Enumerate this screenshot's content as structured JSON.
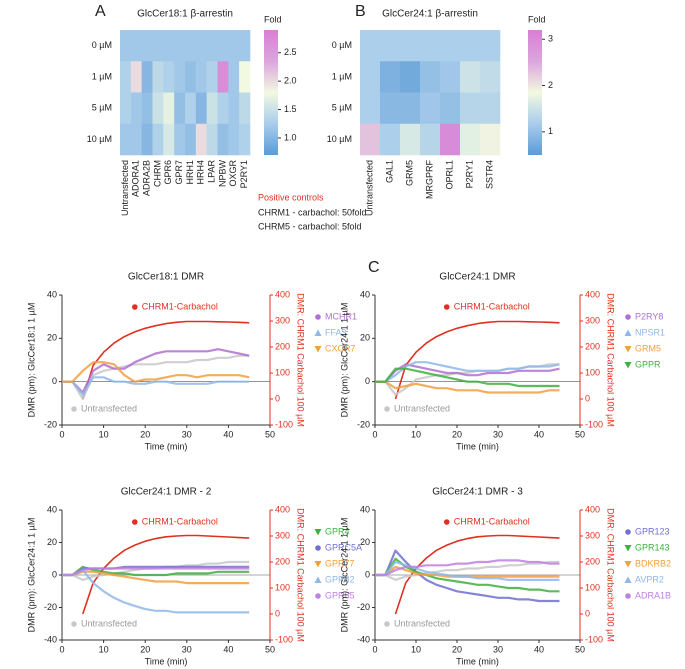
{
  "panel_labels": [
    "A",
    "B",
    "C"
  ],
  "positive_controls": {
    "title": "Positive controls",
    "items": [
      "CHRM1 - carbachol: 50fold",
      "CHRM5 - carbachol: 5fold"
    ]
  },
  "chart_data": [
    {
      "type": "heatmap",
      "title": "GlcCer18:1 β-arrestin",
      "colorbar_label": "Fold",
      "x": [
        "Untransfected",
        "ADORA1",
        "ADRA2B",
        "CHRM",
        "GPR6",
        "GPR7",
        "HRH1",
        "HRH4",
        "LPAR",
        "NPBW",
        "OXGR",
        "P2RY1"
      ],
      "y": [
        "0 µM",
        "1 µM",
        "5 µM",
        "10 µM"
      ],
      "values": [
        [
          1.2,
          1.2,
          1.2,
          1.2,
          1.2,
          1.2,
          1.2,
          1.2,
          1.2,
          1.2,
          1.2,
          1.2
        ],
        [
          1.3,
          2.0,
          1.0,
          1.4,
          1.3,
          1.2,
          1.1,
          1.2,
          1.3,
          2.7,
          1.2,
          1.8
        ],
        [
          1.3,
          1.2,
          1.1,
          1.5,
          1.7,
          1.1,
          1.3,
          1.0,
          1.5,
          1.3,
          1.2,
          1.4
        ],
        [
          1.2,
          1.2,
          1.0,
          1.3,
          1.6,
          1.2,
          1.1,
          2.0,
          1.4,
          1.1,
          1.2,
          1.3
        ]
      ],
      "clim": [
        0.7,
        2.9
      ],
      "cticks": [
        {
          "value": 1,
          "label": "1.0"
        },
        1.5,
        {
          "value": 2,
          "label": "2.0"
        },
        2.5
      ],
      "colors": [
        "#5b9bd5",
        "#a9cdeb",
        "#f2f9e1",
        "#dba6dd",
        "#d77fd4"
      ]
    },
    {
      "type": "heatmap",
      "title": "GlcCer24:1 β-arrestin",
      "colorbar_label": "Fold",
      "x": [
        "Untransfected",
        "GAL1",
        "GRM5",
        "MRGPRF",
        "OPRL1",
        "P2RY1",
        "SSTR4"
      ],
      "y": [
        "0 µM",
        "1 µM",
        "5 µM",
        "10 µM"
      ],
      "values": [
        [
          1.2,
          1.2,
          1.2,
          1.2,
          1.2,
          1.2,
          1.2
        ],
        [
          1.2,
          0.8,
          0.7,
          1.0,
          1.1,
          1.5,
          1.4
        ],
        [
          1.2,
          0.9,
          0.9,
          1.1,
          1.0,
          1.3,
          1.3
        ],
        [
          2.3,
          1.2,
          1.6,
          1.3,
          3.0,
          1.7,
          1.9
        ]
      ],
      "clim": [
        0.5,
        3.2
      ],
      "cticks": [
        1,
        2,
        3
      ],
      "colors": [
        "#5b9bd5",
        "#a9cdeb",
        "#f2f9e1",
        "#dba6dd",
        "#d77fd4"
      ]
    },
    {
      "type": "line",
      "title": "GlcCer18:1 DMR",
      "xlabel": "Time (min)",
      "ylabel": "DMR (pm): GlcCer18:1 1 µM",
      "y2label": "DMR: CHRM1 Carbachol 100 µM",
      "x": [
        0,
        2.5,
        5,
        7.5,
        10,
        12.5,
        15,
        17.5,
        20,
        22.5,
        25,
        27.5,
        30,
        32.5,
        35,
        37.5,
        40,
        42.5,
        45
      ],
      "xlim": [
        0,
        50
      ],
      "xticks": [
        0,
        10,
        20,
        30,
        40,
        50
      ],
      "ylim": [
        -20,
        40
      ],
      "yticks": [
        -20,
        0,
        20,
        40
      ],
      "y2lim": [
        -100,
        400
      ],
      "y2ticks": [
        -100,
        0,
        100,
        200,
        300,
        400
      ],
      "series": [
        {
          "name": "CHRM1-Carbachol",
          "color": "#e03020",
          "axis": "y2",
          "legend": "top",
          "marker": "circle",
          "values": [
            null,
            null,
            0,
            130,
            180,
            215,
            240,
            258,
            272,
            282,
            290,
            295,
            298,
            298,
            298,
            297,
            296,
            295,
            293
          ]
        },
        {
          "name": "Untransfected",
          "color": "#c8c8c8",
          "legend": "bottom-left",
          "marker": "circle",
          "values": [
            0,
            0,
            -8,
            3,
            5,
            6,
            7,
            8,
            8,
            8,
            9,
            9,
            9,
            10,
            10,
            11,
            11,
            12,
            12
          ]
        },
        {
          "name": "MCHR1",
          "color": "#b070d0",
          "legend": "right",
          "marker": "circle",
          "values": [
            0,
            0,
            -5,
            5,
            8,
            6,
            6,
            9,
            11,
            13,
            14,
            14,
            14,
            14,
            14,
            15,
            14,
            13,
            12
          ]
        },
        {
          "name": "FFA3",
          "color": "#8fb8e8",
          "legend": "right",
          "marker": "triangle-up",
          "values": [
            0,
            0,
            -6,
            2,
            2,
            0,
            0,
            -1,
            -1,
            0,
            0,
            -1,
            -1,
            -1,
            -1,
            0,
            0,
            0,
            0
          ]
        },
        {
          "name": "CXCR7",
          "color": "#f0a040",
          "legend": "right",
          "marker": "triangle-down",
          "values": [
            0,
            0,
            5,
            9,
            9,
            8,
            3,
            0,
            1,
            1,
            2,
            3,
            3,
            2,
            3,
            3,
            3,
            3,
            2
          ]
        }
      ]
    },
    {
      "type": "line",
      "title": "GlcCer24:1 DMR",
      "xlabel": "Time (min)",
      "ylabel": "DMR (pm): GlcCer24:1 1 µM",
      "y2label": "DMR: CHRM1 Carbachol 100 µM",
      "x": [
        0,
        2.5,
        5,
        7.5,
        10,
        12.5,
        15,
        17.5,
        20,
        22.5,
        25,
        27.5,
        30,
        32.5,
        35,
        37.5,
        40,
        42.5,
        45
      ],
      "xlim": [
        0,
        50
      ],
      "xticks": [
        0,
        10,
        20,
        30,
        40,
        50
      ],
      "ylim": [
        -20,
        40
      ],
      "yticks": [
        -20,
        0,
        20,
        40
      ],
      "y2lim": [
        -100,
        400
      ],
      "y2ticks": [
        -100,
        0,
        100,
        200,
        300,
        400
      ],
      "series": [
        {
          "name": "CHRM1-Carbachol",
          "color": "#e03020",
          "axis": "y2",
          "legend": "top",
          "marker": "circle",
          "values": [
            null,
            null,
            0,
            130,
            180,
            215,
            240,
            258,
            272,
            282,
            290,
            295,
            298,
            298,
            298,
            297,
            296,
            295,
            293
          ]
        },
        {
          "name": "Untransfected",
          "color": "#c8c8c8",
          "legend": "bottom-left",
          "marker": "circle",
          "values": [
            0,
            0,
            -6,
            -3,
            1,
            2,
            3,
            3,
            4,
            4,
            5,
            5,
            5,
            6,
            6,
            7,
            7,
            8,
            8
          ]
        },
        {
          "name": "P2RY8",
          "color": "#b070d0",
          "legend": "right",
          "marker": "circle",
          "values": [
            0,
            0,
            5,
            8,
            7,
            6,
            5,
            4,
            4,
            3,
            3,
            4,
            4,
            4,
            5,
            5,
            5,
            5,
            6
          ]
        },
        {
          "name": "NPSR1",
          "color": "#8fb8e8",
          "legend": "right",
          "marker": "triangle-up",
          "values": [
            0,
            0,
            3,
            7,
            9,
            9,
            8,
            7,
            6,
            5,
            5,
            5,
            5,
            6,
            6,
            7,
            7,
            7,
            8
          ]
        },
        {
          "name": "GRM5",
          "color": "#f0a040",
          "legend": "right",
          "marker": "triangle-down",
          "values": [
            0,
            0,
            -3,
            -2,
            -1,
            -2,
            -3,
            -3,
            -4,
            -4,
            -4,
            -5,
            -5,
            -5,
            -5,
            -5,
            -5,
            -4,
            -4
          ]
        },
        {
          "name": "GPPR",
          "color": "#40b040",
          "legend": "right",
          "marker": "triangle-down",
          "values": [
            0,
            0,
            6,
            6,
            5,
            4,
            3,
            2,
            1,
            0,
            0,
            -1,
            -1,
            -1,
            -2,
            -2,
            -2,
            -2,
            -2
          ]
        }
      ]
    },
    {
      "type": "line",
      "title": "GlcCer24:1 DMR - 2",
      "xlabel": "Time (min)",
      "ylabel": "DMR (pm): GlcCer24:1 1 µM",
      "y2label": "DMR: CHRM1 Carbachol 100 µM",
      "x": [
        0,
        2.5,
        5,
        7.5,
        10,
        12.5,
        15,
        17.5,
        20,
        22.5,
        25,
        27.5,
        30,
        32.5,
        35,
        37.5,
        40,
        42.5,
        45
      ],
      "xlim": [
        0,
        50
      ],
      "xticks": [
        0,
        10,
        20,
        30,
        40,
        50
      ],
      "ylim": [
        -40,
        40
      ],
      "yticks": [
        -40,
        -20,
        0,
        20,
        40
      ],
      "y2lim": [
        -100,
        400
      ],
      "y2ticks": [
        -100,
        0,
        100,
        200,
        300,
        400
      ],
      "series": [
        {
          "name": "CHRM1-Carbachol",
          "color": "#e03020",
          "axis": "y2",
          "legend": "top",
          "marker": "circle",
          "values": [
            null,
            null,
            0,
            120,
            175,
            215,
            245,
            265,
            280,
            290,
            297,
            300,
            302,
            302,
            300,
            298,
            296,
            294,
            292
          ]
        },
        {
          "name": "Untransfected",
          "color": "#c8c8c8",
          "legend": "bottom-left",
          "marker": "circle",
          "values": [
            0,
            0,
            -3,
            -1,
            0,
            1,
            2,
            3,
            4,
            4,
            5,
            5,
            6,
            6,
            7,
            7,
            8,
            8,
            8
          ]
        },
        {
          "name": "GPR4",
          "color": "#40b040",
          "legend": "right",
          "marker": "triangle-down",
          "values": [
            0,
            0,
            5,
            3,
            2,
            1,
            1,
            0,
            0,
            0,
            0,
            1,
            1,
            1,
            1,
            2,
            2,
            2,
            2
          ]
        },
        {
          "name": "GPRC5A",
          "color": "#7070d0",
          "legend": "right",
          "marker": "circle",
          "values": [
            0,
            0,
            4,
            4,
            4,
            4,
            5,
            5,
            5,
            5,
            5,
            5,
            5,
            5,
            5,
            5,
            5,
            5,
            5
          ]
        },
        {
          "name": "GPR77",
          "color": "#f0a040",
          "legend": "right",
          "marker": "triangle-down",
          "values": [
            0,
            0,
            2,
            2,
            1,
            0,
            -1,
            -2,
            -3,
            -4,
            -4,
            -4,
            -5,
            -5,
            -5,
            -5,
            -5,
            -5,
            -5
          ]
        },
        {
          "name": "GPR82",
          "color": "#8fb8e8",
          "legend": "right",
          "marker": "triangle-up",
          "values": [
            0,
            0,
            3,
            -5,
            -10,
            -14,
            -17,
            -19,
            -21,
            -22,
            -22,
            -23,
            -23,
            -23,
            -23,
            -23,
            -23,
            -23,
            -23
          ]
        },
        {
          "name": "GPR85",
          "color": "#c080e0",
          "legend": "right",
          "marker": "circle",
          "values": [
            0,
            0,
            3,
            4,
            4,
            4,
            4,
            4,
            4,
            4,
            4,
            4,
            4,
            4,
            4,
            4,
            4,
            4,
            4
          ]
        }
      ]
    },
    {
      "type": "line",
      "title": "GlcCer24:1 DMR - 3",
      "xlabel": "Time (min)",
      "ylabel": "DMR (pm): GlcCer24:1 1 µM",
      "y2label": "DMR: CHRM1 Carbachol 100 µM",
      "x": [
        0,
        2.5,
        5,
        7.5,
        10,
        12.5,
        15,
        17.5,
        20,
        22.5,
        25,
        27.5,
        30,
        32.5,
        35,
        37.5,
        40,
        42.5,
        45
      ],
      "xlim": [
        0,
        50
      ],
      "xticks": [
        0,
        10,
        20,
        30,
        40,
        50
      ],
      "ylim": [
        -40,
        40
      ],
      "yticks": [
        -40,
        -20,
        0,
        20,
        40
      ],
      "y2lim": [
        -100,
        400
      ],
      "y2ticks": [
        -100,
        0,
        100,
        200,
        300,
        400
      ],
      "series": [
        {
          "name": "CHRM1-Carbachol",
          "color": "#e03020",
          "axis": "y2",
          "legend": "top",
          "marker": "circle",
          "values": [
            null,
            null,
            0,
            120,
            175,
            215,
            245,
            265,
            280,
            290,
            297,
            300,
            302,
            302,
            300,
            298,
            296,
            294,
            292
          ]
        },
        {
          "name": "Untransfected",
          "color": "#c8c8c8",
          "legend": "bottom-left",
          "marker": "circle",
          "values": [
            0,
            0,
            -3,
            -1,
            0,
            1,
            2,
            3,
            3,
            4,
            4,
            5,
            5,
            6,
            6,
            7,
            7,
            8,
            8
          ]
        },
        {
          "name": "GPR123",
          "color": "#7070d0",
          "legend": "right",
          "marker": "circle",
          "values": [
            0,
            0,
            15,
            8,
            2,
            -3,
            -6,
            -8,
            -10,
            -11,
            -12,
            -13,
            -14,
            -14,
            -15,
            -15,
            -16,
            -16,
            -16
          ]
        },
        {
          "name": "GPR143",
          "color": "#40b040",
          "legend": "right",
          "marker": "triangle-down",
          "values": [
            0,
            0,
            10,
            5,
            2,
            0,
            -2,
            -3,
            -4,
            -5,
            -6,
            -6,
            -7,
            -8,
            -8,
            -9,
            -9,
            -10,
            -10
          ]
        },
        {
          "name": "BDKRB2",
          "color": "#f0a040",
          "legend": "right",
          "marker": "triangle-down",
          "values": [
            0,
            0,
            5,
            3,
            1,
            0,
            0,
            -1,
            -1,
            -1,
            -1,
            -1,
            -1,
            -1,
            -1,
            -1,
            -1,
            -1,
            -1
          ]
        },
        {
          "name": "AVPR2",
          "color": "#8fb8e8",
          "legend": "right",
          "marker": "triangle-up",
          "values": [
            0,
            0,
            8,
            6,
            4,
            2,
            1,
            0,
            -1,
            -1,
            -2,
            -2,
            -2,
            -3,
            -3,
            -3,
            -3,
            -3,
            -3
          ]
        },
        {
          "name": "ADRA1B",
          "color": "#c080e0",
          "legend": "right",
          "marker": "circle",
          "values": [
            0,
            0,
            3,
            5,
            5,
            6,
            6,
            6,
            7,
            7,
            8,
            8,
            9,
            9,
            9,
            8,
            8,
            7,
            7
          ]
        }
      ]
    }
  ]
}
